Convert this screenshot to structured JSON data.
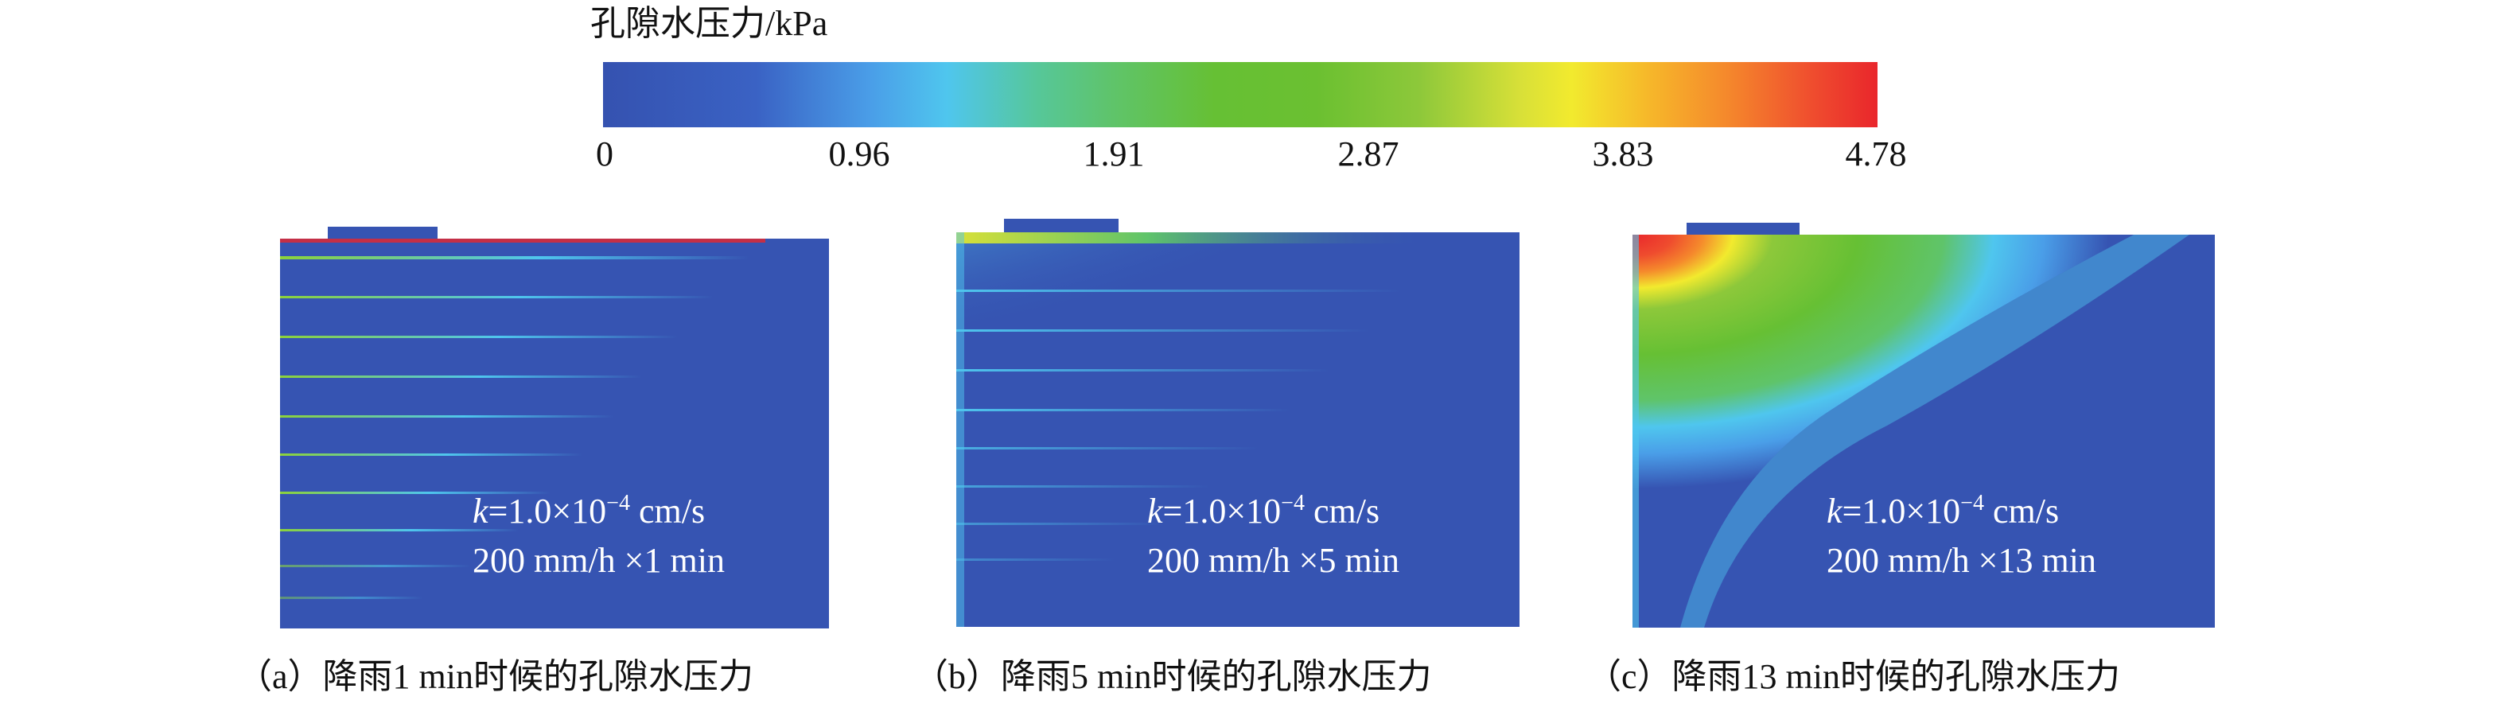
{
  "colorbar": {
    "title": "孔隙水压力/kPa",
    "ticks": [
      "0",
      "0.96",
      "1.91",
      "2.87",
      "3.83",
      "4.78"
    ],
    "min": 0,
    "max": 4.78
  },
  "panels": [
    {
      "id": "a",
      "k_prefix": "k",
      "k_value": "=1.0×10",
      "k_exp": "−4",
      "k_unit": " cm/s",
      "rain": "200 mm/h ×1 min",
      "caption": "（a）降雨1 min时候的孔隙水压力"
    },
    {
      "id": "b",
      "k_prefix": "k",
      "k_value": "=1.0×10",
      "k_exp": "−4",
      "k_unit": " cm/s",
      "rain": "200 mm/h ×5 min",
      "caption": "（b）降雨5 min时候的孔隙水压力"
    },
    {
      "id": "c",
      "k_prefix": "k",
      "k_value": "=1.0×10",
      "k_exp": "−4",
      "k_unit": " cm/s",
      "rain": "200 mm/h ×13 min",
      "caption": "（c）降雨13 min时候的孔隙水压力"
    }
  ],
  "colors": {
    "background_field": "#3654b2",
    "low": "#3552b0",
    "mid": "#66c034",
    "high": "#e9262c"
  }
}
